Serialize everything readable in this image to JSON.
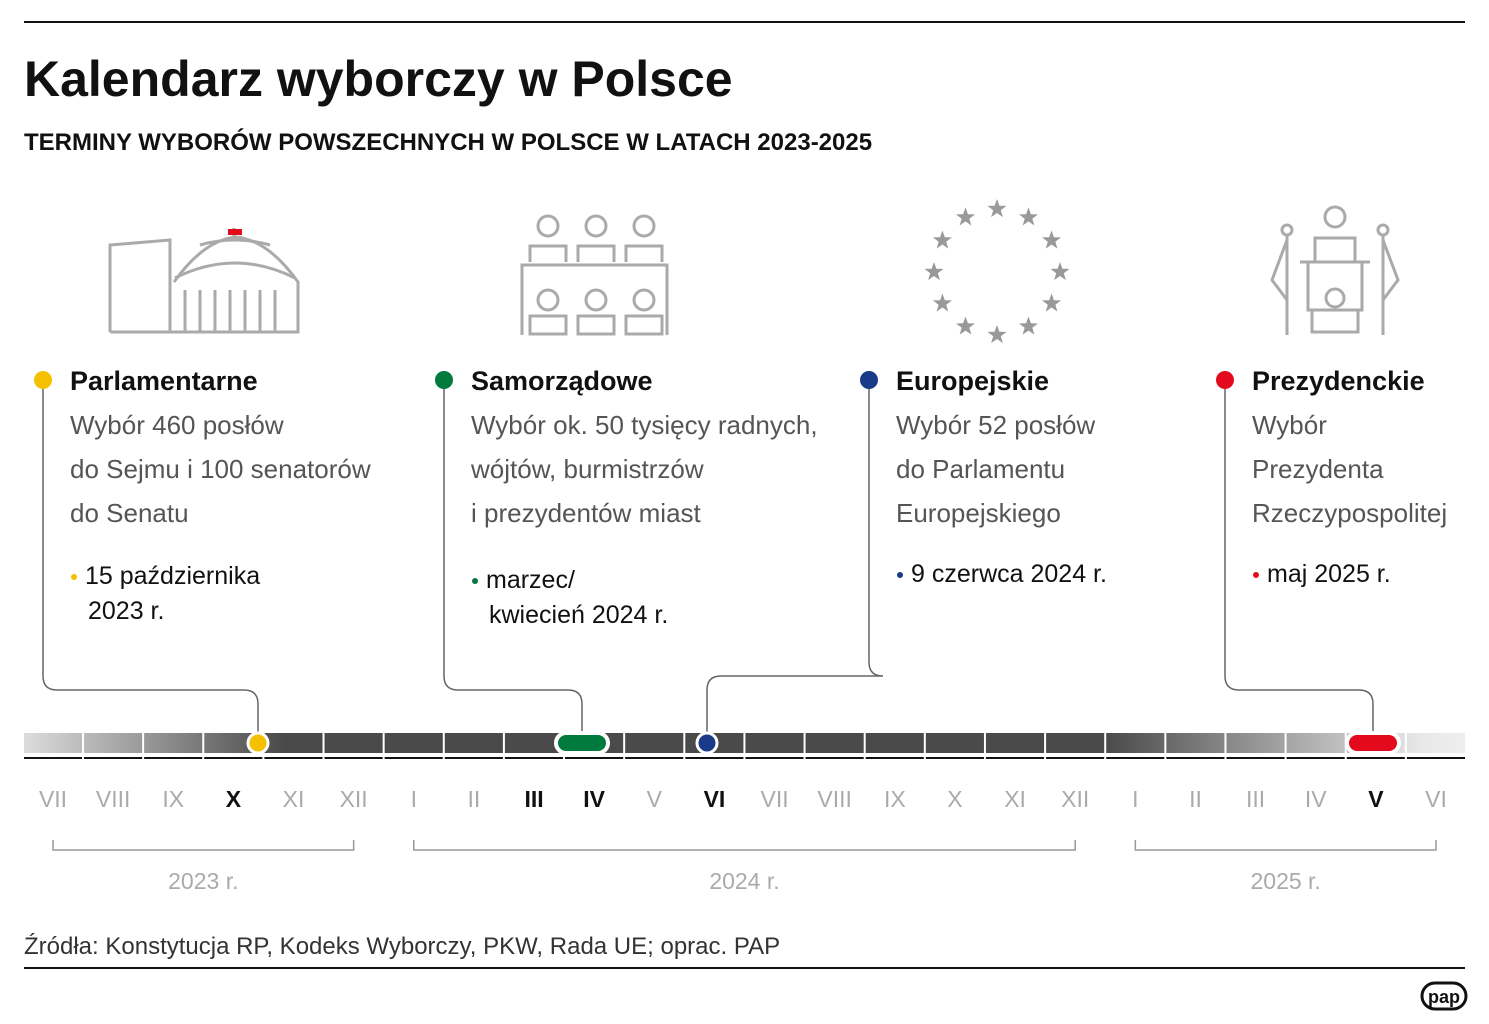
{
  "header": {
    "title": "Kalendarz wyborczy w Polsce",
    "subtitle": "TERMINY WYBORÓW POWSZECHNYCH W POLSCE W LATACH 2023-2025"
  },
  "elections": [
    {
      "name": "Parlamentarne",
      "color": "#f5c000",
      "description": [
        "Wybór 460 posłów",
        "do Sejmu i 100 senatorów",
        "do Senatu"
      ],
      "date": [
        "15 października",
        "2023 r."
      ]
    },
    {
      "name": "Samorządowe",
      "color": "#007a3d",
      "description": [
        "Wybór ok. 50 tysięcy radnych,",
        "wójtów, burmistrzów",
        "i prezydentów miast"
      ],
      "date": [
        "marzec/",
        "kwiecień 2024 r."
      ]
    },
    {
      "name": "Europejskie",
      "color": "#1a3a8a",
      "description": [
        "Wybór 52 posłów",
        "do Parlamentu",
        "Europejskiego"
      ],
      "date": [
        "9 czerwca 2024 r."
      ]
    },
    {
      "name": "Prezydenckie",
      "color": "#e30a1e",
      "description": [
        "Wybór",
        "Prezydenta",
        "Rzeczypospolitej"
      ],
      "date": [
        "maj 2025 r."
      ]
    }
  ],
  "years": [
    {
      "label": "2023 r.",
      "months": [
        {
          "label": "VII"
        },
        {
          "label": "VIII"
        },
        {
          "label": "IX"
        },
        {
          "label": "X",
          "bold": true
        },
        {
          "label": "XI"
        },
        {
          "label": "XII"
        }
      ]
    },
    {
      "label": "2024 r.",
      "months": [
        {
          "label": "I"
        },
        {
          "label": "II"
        },
        {
          "label": "III",
          "bold": true
        },
        {
          "label": "IV",
          "bold": true
        },
        {
          "label": "V"
        },
        {
          "label": "VI",
          "bold": true
        },
        {
          "label": "VII"
        },
        {
          "label": "VIII"
        },
        {
          "label": "IX"
        },
        {
          "label": "X"
        },
        {
          "label": "XI"
        },
        {
          "label": "XII"
        }
      ]
    },
    {
      "label": "2025 r.",
      "months": [
        {
          "label": "I"
        },
        {
          "label": "II"
        },
        {
          "label": "III"
        },
        {
          "label": "IV"
        },
        {
          "label": "V",
          "bold": true
        },
        {
          "label": "VI"
        }
      ]
    }
  ],
  "source": "Źródła: Konstytucja RP, Kodeks Wyborczy, PKW, Rada UE; oprac. PAP",
  "logo": "pap"
}
